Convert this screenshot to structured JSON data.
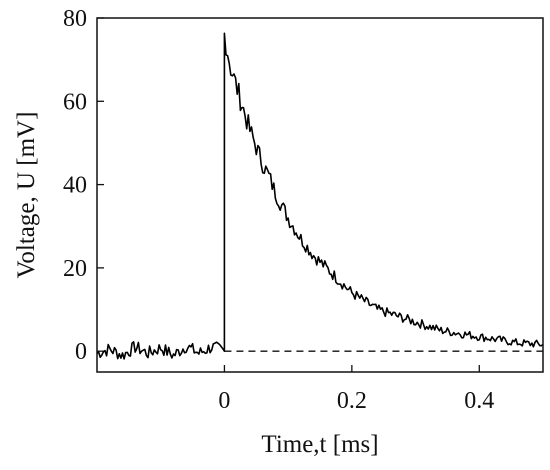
{
  "chart_data": {
    "type": "line",
    "title": "",
    "xlabel": "Time,t [ms]",
    "ylabel": "Voltage, U [mV]",
    "xlim": [
      -0.2,
      0.5
    ],
    "ylim": [
      -5,
      80
    ],
    "x_ticks": [
      0,
      0.2,
      0.4
    ],
    "x_tick_labels": [
      "0",
      "0.2",
      "0.4"
    ],
    "y_ticks": [
      0,
      20,
      40,
      60,
      80
    ],
    "y_tick_labels": [
      "0",
      "20",
      "40",
      "60",
      "80"
    ],
    "grid": false,
    "legend": "none",
    "reference_line": {
      "y": 0,
      "style": "dashed",
      "x_from": 0
    },
    "series": [
      {
        "color": "#000000",
        "x": [
          -0.2,
          -0.18,
          -0.16,
          -0.14,
          -0.12,
          -0.1,
          -0.08,
          -0.06,
          -0.04,
          -0.02,
          -0.005,
          0,
          0,
          0.005,
          0.01,
          0.02,
          0.03,
          0.04,
          0.05,
          0.06,
          0.07,
          0.08,
          0.09,
          0.1,
          0.12,
          0.14,
          0.16,
          0.18,
          0.2,
          0.22,
          0.24,
          0.26,
          0.28,
          0.3,
          0.32,
          0.34,
          0.36,
          0.38,
          0.4,
          0.42,
          0.44,
          0.46,
          0.48,
          0.5
        ],
        "y": [
          -0.5,
          0.5,
          -1,
          1,
          -0.5,
          0.8,
          -1,
          1.2,
          -0.5,
          1,
          0.3,
          0,
          76,
          72,
          68,
          63,
          58,
          53,
          49,
          45,
          42,
          38,
          35,
          32,
          27,
          23,
          20,
          17,
          14,
          12,
          10,
          9,
          8,
          7,
          6,
          5,
          4.5,
          4,
          3.5,
          3,
          2.5,
          2,
          1.8,
          1.6
        ]
      }
    ]
  }
}
